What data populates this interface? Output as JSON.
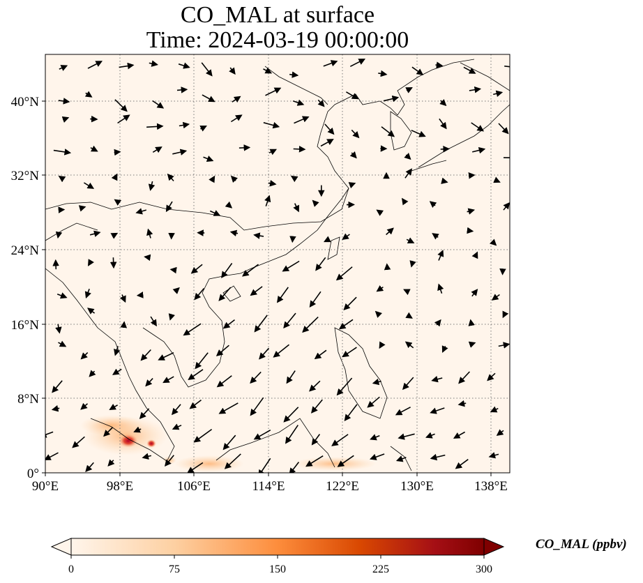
{
  "title": {
    "line1": "CO_MAL at surface",
    "line2": "Time: 2024-03-19 00:00:00"
  },
  "map": {
    "lon_range": [
      90,
      140
    ],
    "lat_range": [
      0,
      45
    ],
    "lon_ticks": [
      90,
      98,
      106,
      114,
      122,
      130,
      138
    ],
    "lon_tick_labels": [
      "90°E",
      "98°E",
      "106°E",
      "114°E",
      "122°E",
      "130°E",
      "138°E"
    ],
    "lat_ticks": [
      0,
      8,
      16,
      24,
      32,
      40
    ],
    "lat_tick_labels": [
      "0°",
      "8°N",
      "16°N",
      "24°N",
      "32°N",
      "40°N"
    ],
    "gridlines": "dotted",
    "background_color": "#fff5eb",
    "wind_vectors": "shown"
  },
  "colorbar": {
    "label": "CO_MAL (ppbv)",
    "range": [
      0,
      300
    ],
    "ticks": [
      0,
      75,
      150,
      225,
      300
    ],
    "tick_labels": [
      "0",
      "75",
      "150",
      "225",
      "300"
    ],
    "colormap": [
      "#fff5eb",
      "#fdd0a2",
      "#fd8d3c",
      "#d94801",
      "#8c2d04",
      "#7f0000"
    ],
    "extend": "both"
  }
}
